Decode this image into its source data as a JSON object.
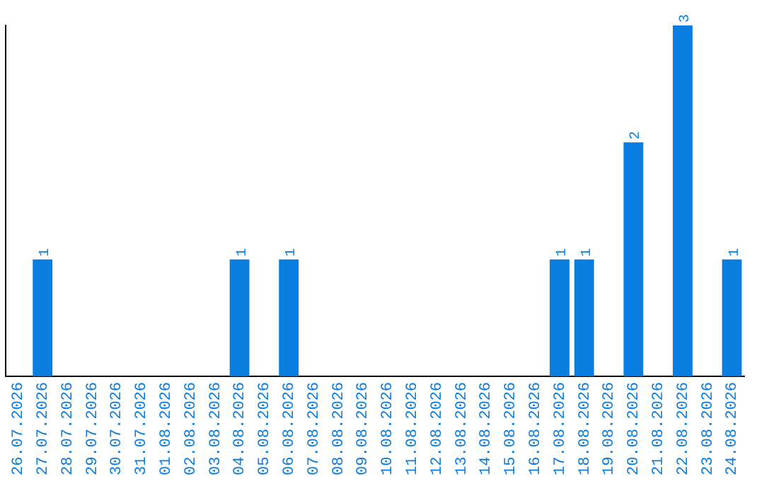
{
  "chart_data": {
    "type": "bar",
    "categories": [
      "26.07.2026",
      "27.07.2026",
      "28.07.2026",
      "29.07.2026",
      "30.07.2026",
      "31.07.2026",
      "01.08.2026",
      "02.08.2026",
      "03.08.2026",
      "04.08.2026",
      "05.08.2026",
      "06.08.2026",
      "07.08.2026",
      "08.08.2026",
      "09.08.2026",
      "10.08.2026",
      "11.08.2026",
      "12.08.2026",
      "13.08.2026",
      "14.08.2026",
      "15.08.2026",
      "16.08.2026",
      "17.08.2026",
      "18.08.2026",
      "19.08.2026",
      "20.08.2026",
      "21.08.2026",
      "22.08.2026",
      "23.08.2026",
      "24.08.2026"
    ],
    "values": [
      0,
      1,
      0,
      0,
      0,
      0,
      0,
      0,
      0,
      1,
      0,
      1,
      0,
      0,
      0,
      0,
      0,
      0,
      0,
      0,
      0,
      0,
      1,
      1,
      0,
      2,
      0,
      3,
      0,
      1
    ],
    "value_labels": [
      null,
      "1",
      null,
      null,
      null,
      null,
      null,
      null,
      null,
      "1",
      null,
      "1",
      null,
      null,
      null,
      null,
      null,
      null,
      null,
      null,
      null,
      null,
      "1",
      "1",
      null,
      "2",
      null,
      "3",
      null,
      "1"
    ],
    "color": "#0a7de0",
    "grid": false,
    "legend": false,
    "tick_labels": "x"
  }
}
